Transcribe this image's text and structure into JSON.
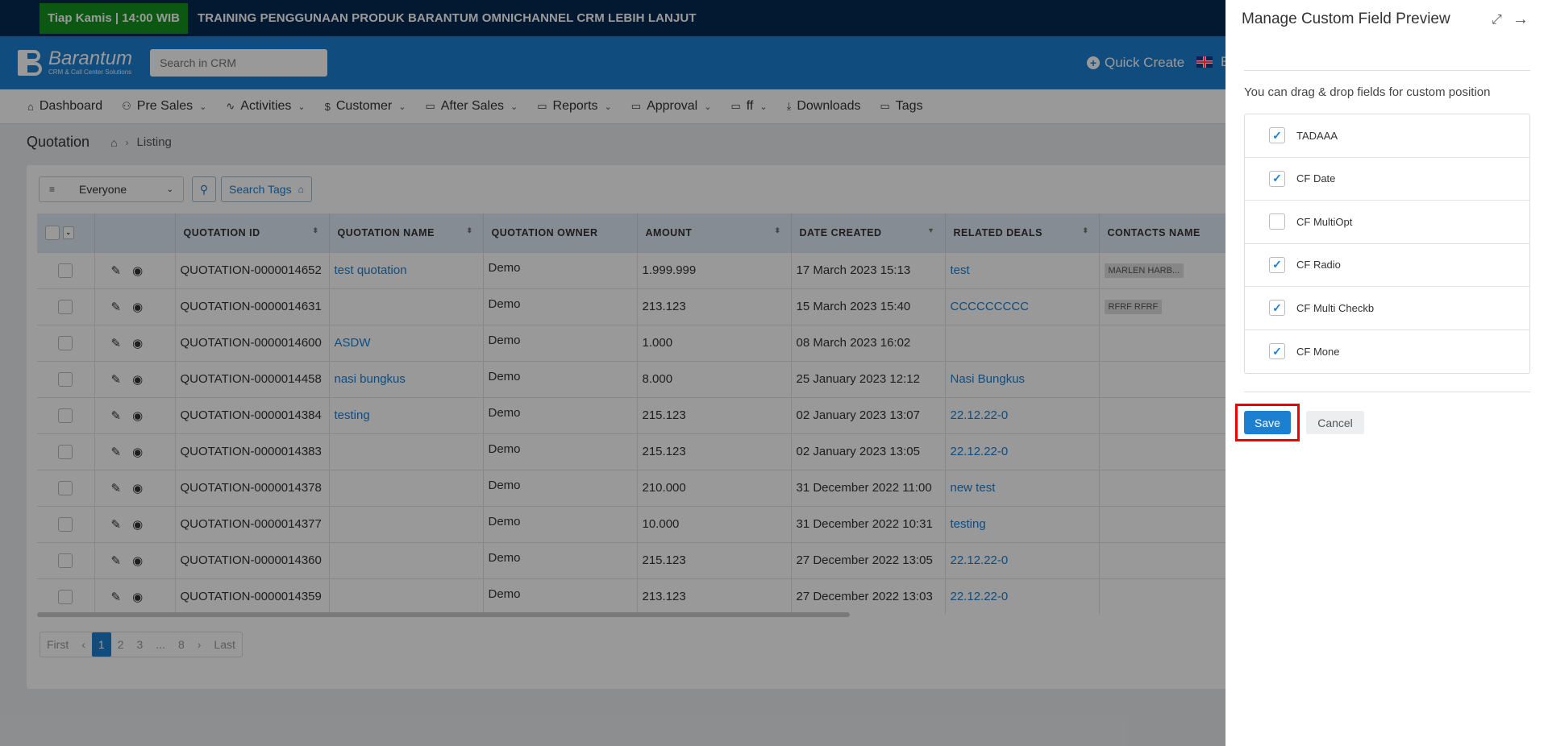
{
  "banner": {
    "badge": "Tiap Kamis | 14:00 WIB",
    "text": "TRAINING PENGGUNAAN PRODUK BARANTUM OMNICHANNEL CRM LEBIH LANJUT"
  },
  "header": {
    "logo_name": "Barantum",
    "logo_sub": "CRM & Call Center Solutions",
    "search_placeholder": "Search in CRM",
    "quick_create": "Quick Create",
    "lang_letter": "E"
  },
  "nav": {
    "items": [
      {
        "label": "Dashboard",
        "icon": "home-icon"
      },
      {
        "label": "Pre Sales",
        "icon": "users-icon"
      },
      {
        "label": "Activities",
        "icon": "activity-icon"
      },
      {
        "label": "Customer",
        "icon": "dollar-icon"
      },
      {
        "label": "After Sales",
        "icon": "folder-icon"
      },
      {
        "label": "Reports",
        "icon": "folder-icon"
      },
      {
        "label": "Approval",
        "icon": "folder-icon"
      },
      {
        "label": "ff",
        "icon": "folder-icon"
      },
      {
        "label": "Downloads",
        "icon": "download-icon"
      },
      {
        "label": "Tags",
        "icon": "folder-icon"
      }
    ]
  },
  "page": {
    "title": "Quotation",
    "crumb": "Listing"
  },
  "filter": {
    "owner_value": "Everyone",
    "tags_label": "Search Tags"
  },
  "table": {
    "columns": [
      "QUOTATION ID",
      "QUOTATION NAME",
      "QUOTATION OWNER",
      "AMOUNT",
      "DATE CREATED",
      "RELATED DEALS",
      "CONTACTS NAME"
    ],
    "rows": [
      {
        "id": "QUOTATION-0000014652",
        "name": "test quotation",
        "owner": "Demo",
        "amount": "1.999.999",
        "date": "17 March 2023 15:13",
        "deal": "test",
        "contact": "MARLEN HARB..."
      },
      {
        "id": "QUOTATION-0000014631",
        "name": "",
        "owner": "Demo",
        "amount": "213.123",
        "date": "15 March 2023 15:40",
        "deal": "CCCCCCCCC",
        "contact": "RFRF RFRF"
      },
      {
        "id": "QUOTATION-0000014600",
        "name": "ASDW",
        "owner": "Demo",
        "amount": "1.000",
        "date": "08 March 2023 16:02",
        "deal": "",
        "contact": ""
      },
      {
        "id": "QUOTATION-0000014458",
        "name": "nasi bungkus",
        "owner": "Demo",
        "amount": "8.000",
        "date": "25 January 2023 12:12",
        "deal": "Nasi Bungkus",
        "contact": ""
      },
      {
        "id": "QUOTATION-0000014384",
        "name": "testing",
        "owner": "Demo",
        "amount": "215.123",
        "date": "02 January 2023 13:07",
        "deal": "22.12.22-0",
        "contact": ""
      },
      {
        "id": "QUOTATION-0000014383",
        "name": "",
        "owner": "Demo",
        "amount": "215.123",
        "date": "02 January 2023 13:05",
        "deal": "22.12.22-0",
        "contact": ""
      },
      {
        "id": "QUOTATION-0000014378",
        "name": "",
        "owner": "Demo",
        "amount": "210.000",
        "date": "31 December 2022 11:00",
        "deal": "new test",
        "contact": ""
      },
      {
        "id": "QUOTATION-0000014377",
        "name": "",
        "owner": "Demo",
        "amount": "10.000",
        "date": "31 December 2022 10:31",
        "deal": "testing",
        "contact": ""
      },
      {
        "id": "QUOTATION-0000014360",
        "name": "",
        "owner": "Demo",
        "amount": "215.123",
        "date": "27 December 2022 13:05",
        "deal": "22.12.22-0",
        "contact": ""
      },
      {
        "id": "QUOTATION-0000014359",
        "name": "",
        "owner": "Demo",
        "amount": "213.123",
        "date": "27 December 2022 13:03",
        "deal": "22.12.22-0",
        "contact": ""
      }
    ]
  },
  "pager": {
    "first": "First",
    "prev": "‹",
    "pages": [
      "1",
      "2",
      "3",
      "...",
      "8"
    ],
    "next": "›",
    "last": "Last"
  },
  "panel": {
    "title": "Manage Custom Field Preview",
    "hint": "You can drag & drop fields for custom position",
    "fields": [
      {
        "label": "TADAAA",
        "checked": true
      },
      {
        "label": "CF Date",
        "checked": true
      },
      {
        "label": "CF MultiOpt",
        "checked": false
      },
      {
        "label": "CF Radio",
        "checked": true
      },
      {
        "label": "CF Multi Checkb",
        "checked": true
      },
      {
        "label": "CF Mone",
        "checked": true
      }
    ],
    "save_label": "Save",
    "cancel_label": "Cancel"
  },
  "colors": {
    "primary": "#1c7fd0",
    "banner_bg": "#062a54",
    "badge_bg": "#14911f",
    "highlight": "#e00000"
  }
}
